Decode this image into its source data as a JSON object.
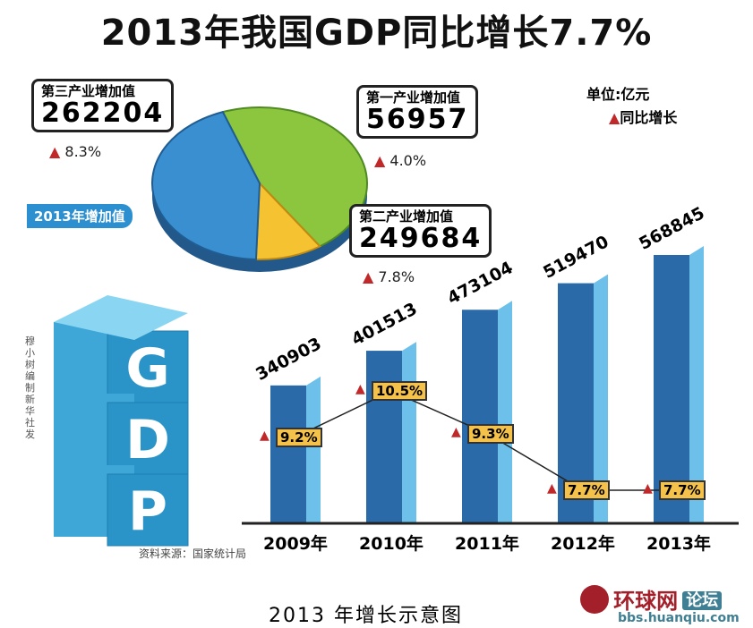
{
  "title": "2013年我国GDP同比增长7.7%",
  "legend": {
    "unit": "单位:亿元",
    "growth": "同比增长",
    "marker_color": "#c0282a"
  },
  "pie": {
    "label": "2013年增加值",
    "slices": [
      {
        "name": "第三产业增加值",
        "value": 262204,
        "growth": "8.3%",
        "color": "#8cc63f"
      },
      {
        "name": "第一产业增加值",
        "value": 56957,
        "growth": "4.0%",
        "color": "#f5c232"
      },
      {
        "name": "第二产业增加值",
        "value": 249684,
        "growth": "7.8%",
        "color": "#3a8fd0"
      }
    ]
  },
  "credit": "穆小树编制 新华社发",
  "source": "资料来源：国家统计局",
  "gdp_letters": [
    "G",
    "D",
    "P"
  ],
  "chart_data": {
    "type": "bar",
    "categories": [
      "2009年",
      "2010年",
      "2011年",
      "2012年",
      "2013年"
    ],
    "values": [
      340903,
      401513,
      473104,
      519470,
      568845
    ],
    "growth_line": {
      "values": [
        9.2,
        10.5,
        9.3,
        7.7,
        7.7
      ],
      "labels": [
        "9.2%",
        "10.5%",
        "9.3%",
        "7.7%",
        "7.7%"
      ]
    },
    "bar_color": "#2f7fc0"
  },
  "caption": "2013 年增长示意图",
  "watermark": {
    "brand": "环球网",
    "tag": "论坛",
    "url": "bbs.huanqiu.com"
  }
}
